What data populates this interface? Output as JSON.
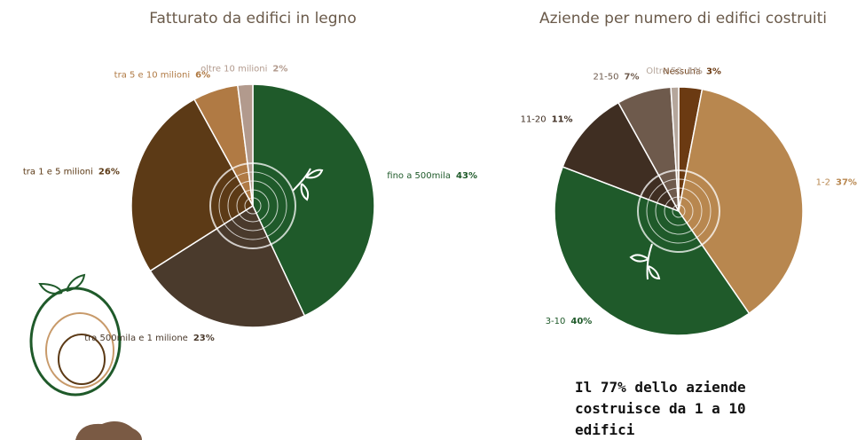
{
  "chart_data": [
    {
      "type": "pie",
      "title": "Fatturato da edifici in legno",
      "categories": [
        "fino a 500mila",
        "tra 500mila e 1 milione",
        "tra 1 e 5 milioni",
        "tra 5 e 10 milioni",
        "oltre 10 milioni"
      ],
      "values": [
        43,
        23,
        26,
        6,
        2
      ],
      "value_labels": [
        "43%",
        "23%",
        "26%",
        "6%",
        "2%"
      ],
      "colors": [
        "#1f5a2a",
        "#4a3a2c",
        "#5c3a16",
        "#b07a44",
        "#b29a8d"
      ]
    },
    {
      "type": "pie",
      "title": "Aziende per numero di edifici costruiti",
      "categories": [
        "Nessuna",
        "1-2",
        "3-10",
        "11-20",
        "21-50",
        "Oltre 50"
      ],
      "values": [
        3,
        37,
        40,
        11,
        7,
        1
      ],
      "value_labels": [
        "3%",
        "37%",
        "40%",
        "11%",
        "7%",
        "1%"
      ],
      "colors": [
        "#6b3a12",
        "#b8874f",
        "#1f5a2a",
        "#3f2e22",
        "#6e5a4c",
        "#b5a69b"
      ],
      "annotation": [
        "Il 77% dello aziende",
        "costruisce da 1 a 10",
        "edifici"
      ]
    }
  ]
}
